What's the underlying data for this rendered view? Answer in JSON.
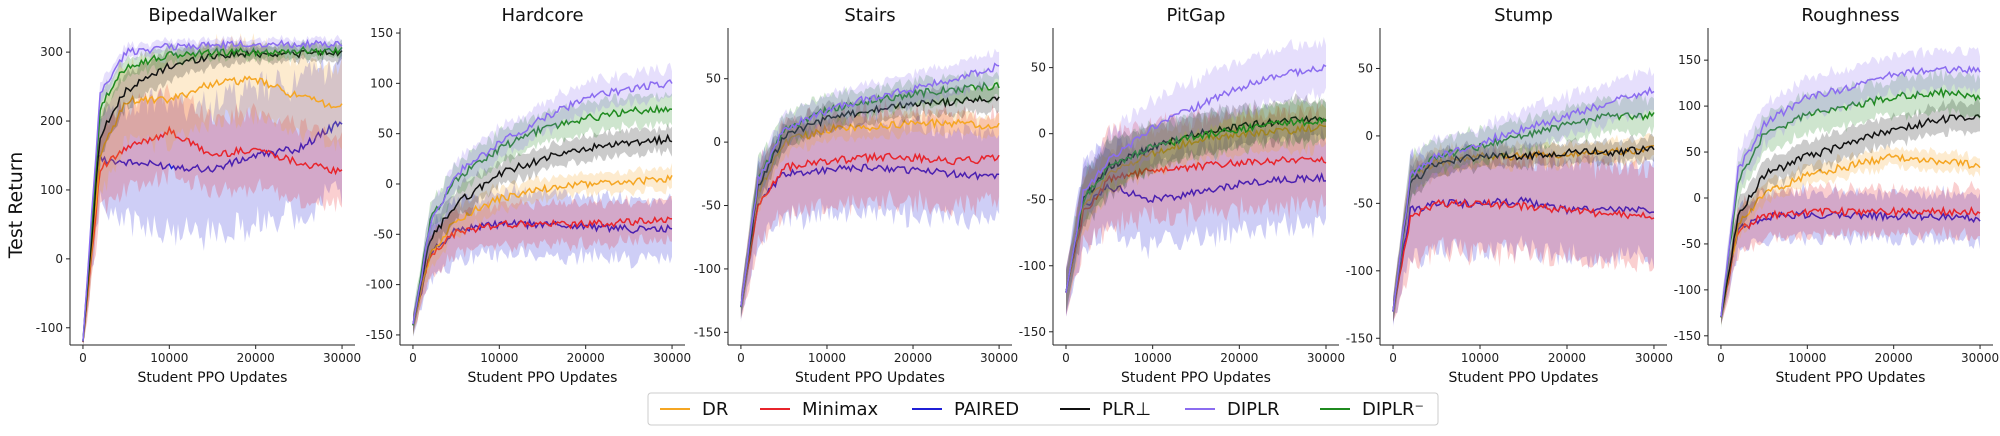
{
  "chart_data": {
    "type": "line",
    "ylabel": "Test Return",
    "xlabel": "Student PPO Updates",
    "x_ticks": [
      0,
      10000,
      20000,
      30000
    ],
    "xlim": [
      -1500,
      31500
    ],
    "legend": {
      "placement": "bottom-center",
      "entries": [
        {
          "name": "DR",
          "color": "#f5a623"
        },
        {
          "name": "Minimax",
          "color": "#e8242b"
        },
        {
          "name": "PAIRED",
          "color": "#1f1fd6"
        },
        {
          "name": "PLR⊥",
          "color": "#111111"
        },
        {
          "name": "DIPLR",
          "color": "#8b6cf0"
        },
        {
          "name": "DIPLR⁻",
          "color": "#1f8a1f"
        }
      ]
    },
    "panels": [
      {
        "title": "BipedalWalker",
        "ylim": [
          -125,
          335
        ],
        "y_ticks": [
          -100,
          0,
          100,
          200,
          300
        ],
        "x": [
          0,
          2000,
          5000,
          10000,
          15000,
          20000,
          25000,
          30000
        ],
        "series": [
          {
            "name": "DR",
            "values": [
              -120,
              150,
              230,
              230,
              255,
              260,
              235,
              220
            ],
            "spread": [
              15,
              60,
              60,
              60,
              55,
              55,
              55,
              55
            ]
          },
          {
            "name": "Minimax",
            "values": [
              -120,
              130,
              160,
              185,
              150,
              160,
              140,
              125
            ],
            "spread": [
              15,
              60,
              60,
              60,
              55,
              55,
              55,
              50
            ]
          },
          {
            "name": "PAIRED",
            "values": [
              -120,
              145,
              140,
              135,
              130,
              150,
              160,
              200
            ],
            "spread": [
              15,
              60,
              85,
              90,
              95,
              95,
              95,
              95
            ]
          },
          {
            "name": "PLR⊥",
            "values": [
              -120,
              180,
              245,
              280,
              295,
              298,
              298,
              300
            ],
            "spread": [
              15,
              30,
              25,
              20,
              15,
              12,
              12,
              12
            ]
          },
          {
            "name": "DIPLR",
            "values": [
              -120,
              240,
              300,
              308,
              310,
              312,
              312,
              310
            ],
            "spread": [
              15,
              15,
              10,
              8,
              8,
              8,
              8,
              8
            ]
          },
          {
            "name": "DIPLR⁻",
            "values": [
              -120,
              220,
              280,
              295,
              300,
              300,
              302,
              302
            ],
            "spread": [
              15,
              20,
              15,
              12,
              10,
              10,
              10,
              10
            ]
          }
        ]
      },
      {
        "title": "Hardcore",
        "ylim": [
          -160,
          155
        ],
        "y_ticks": [
          -150,
          -100,
          -50,
          0,
          50,
          100,
          150
        ],
        "x": [
          0,
          2000,
          5000,
          10000,
          15000,
          20000,
          25000,
          30000
        ],
        "series": [
          {
            "name": "DR",
            "values": [
              -140,
              -70,
              -35,
              -15,
              -5,
              0,
              2,
              5
            ],
            "spread": [
              10,
              15,
              15,
              12,
              10,
              10,
              10,
              10
            ]
          },
          {
            "name": "Minimax",
            "values": [
              -140,
              -70,
              -48,
              -40,
              -40,
              -40,
              -38,
              -35
            ],
            "spread": [
              10,
              20,
              20,
              20,
              20,
              20,
              20,
              20
            ]
          },
          {
            "name": "PAIRED",
            "values": [
              -140,
              -70,
              -45,
              -40,
              -40,
              -42,
              -45,
              -45
            ],
            "spread": [
              10,
              25,
              30,
              30,
              30,
              30,
              30,
              30
            ]
          },
          {
            "name": "PLR⊥",
            "values": [
              -140,
              -55,
              -20,
              10,
              25,
              35,
              40,
              45
            ],
            "spread": [
              10,
              15,
              15,
              12,
              12,
              12,
              12,
              12
            ]
          },
          {
            "name": "DIPLR",
            "values": [
              -140,
              -40,
              10,
              40,
              65,
              85,
              95,
              100
            ],
            "spread": [
              10,
              15,
              15,
              15,
              15,
              15,
              15,
              15
            ]
          },
          {
            "name": "DIPLR⁻",
            "values": [
              -140,
              -35,
              5,
              35,
              55,
              65,
              72,
              75
            ],
            "spread": [
              10,
              15,
              15,
              15,
              15,
              15,
              15,
              15
            ]
          }
        ]
      },
      {
        "title": "Stairs",
        "ylim": [
          -160,
          90
        ],
        "y_ticks": [
          -150,
          -100,
          -50,
          0,
          50
        ],
        "x": [
          0,
          2000,
          5000,
          10000,
          15000,
          20000,
          25000,
          30000
        ],
        "series": [
          {
            "name": "DR",
            "values": [
              -130,
              -40,
              0,
              10,
              12,
              15,
              15,
              12
            ],
            "spread": [
              10,
              15,
              10,
              8,
              8,
              8,
              8,
              8
            ]
          },
          {
            "name": "Minimax",
            "values": [
              -130,
              -50,
              -20,
              -15,
              -12,
              -12,
              -15,
              -13
            ],
            "spread": [
              10,
              30,
              35,
              35,
              35,
              35,
              35,
              35
            ]
          },
          {
            "name": "PAIRED",
            "values": [
              -130,
              -50,
              -25,
              -22,
              -20,
              -22,
              -25,
              -27
            ],
            "spread": [
              10,
              30,
              35,
              35,
              35,
              35,
              35,
              35
            ]
          },
          {
            "name": "PLR⊥",
            "values": [
              -130,
              -35,
              5,
              18,
              25,
              30,
              32,
              35
            ],
            "spread": [
              10,
              15,
              10,
              10,
              10,
              10,
              10,
              10
            ]
          },
          {
            "name": "DIPLR",
            "values": [
              -130,
              -30,
              10,
              25,
              35,
              42,
              50,
              60
            ],
            "spread": [
              10,
              15,
              12,
              12,
              12,
              12,
              12,
              12
            ]
          },
          {
            "name": "DIPLR⁻",
            "values": [
              -130,
              -30,
              10,
              25,
              32,
              38,
              42,
              45
            ],
            "spread": [
              10,
              15,
              12,
              12,
              10,
              10,
              10,
              10
            ]
          }
        ]
      },
      {
        "title": "PitGap",
        "ylim": [
          -160,
          80
        ],
        "y_ticks": [
          -150,
          -100,
          -50,
          0,
          50
        ],
        "x": [
          0,
          2000,
          5000,
          10000,
          15000,
          20000,
          25000,
          30000
        ],
        "series": [
          {
            "name": "DR",
            "values": [
              -120,
              -55,
              -30,
              -15,
              -5,
              0,
              2,
              5
            ],
            "spread": [
              15,
              20,
              15,
              15,
              15,
              15,
              15,
              15
            ]
          },
          {
            "name": "Minimax",
            "values": [
              -120,
              -60,
              -35,
              -28,
              -25,
              -22,
              -20,
              -20
            ],
            "spread": [
              15,
              25,
              35,
              35,
              35,
              35,
              35,
              35
            ]
          },
          {
            "name": "PAIRED",
            "values": [
              -120,
              -55,
              -40,
              -50,
              -45,
              -38,
              -35,
              -33
            ],
            "spread": [
              15,
              30,
              35,
              35,
              35,
              35,
              35,
              35
            ]
          },
          {
            "name": "PLR⊥",
            "values": [
              -120,
              -50,
              -25,
              -10,
              0,
              5,
              10,
              12
            ],
            "spread": [
              15,
              20,
              20,
              15,
              15,
              15,
              15,
              15
            ]
          },
          {
            "name": "DIPLR",
            "values": [
              -120,
              -45,
              -20,
              5,
              20,
              35,
              45,
              50
            ],
            "spread": [
              15,
              20,
              20,
              20,
              20,
              20,
              20,
              20
            ]
          },
          {
            "name": "DIPLR⁻",
            "values": [
              -120,
              -50,
              -25,
              -10,
              -2,
              3,
              8,
              10
            ],
            "spread": [
              15,
              20,
              20,
              15,
              15,
              15,
              15,
              15
            ]
          }
        ]
      },
      {
        "title": "Stump",
        "ylim": [
          -155,
          80
        ],
        "y_ticks": [
          -150,
          -100,
          -50,
          0,
          50
        ],
        "x": [
          0,
          2000,
          5000,
          10000,
          15000,
          20000,
          25000,
          30000
        ],
        "series": [
          {
            "name": "DR",
            "values": [
              -130,
              -30,
              -20,
              -15,
              -15,
              -13,
              -12,
              -10
            ],
            "spread": [
              10,
              12,
              10,
              8,
              8,
              8,
              8,
              8
            ]
          },
          {
            "name": "Minimax",
            "values": [
              -130,
              -60,
              -50,
              -50,
              -52,
              -55,
              -58,
              -60
            ],
            "spread": [
              10,
              35,
              35,
              35,
              35,
              35,
              35,
              35
            ]
          },
          {
            "name": "PAIRED",
            "values": [
              -130,
              -55,
              -50,
              -50,
              -48,
              -55,
              -55,
              -55
            ],
            "spread": [
              10,
              35,
              35,
              35,
              35,
              35,
              35,
              35
            ]
          },
          {
            "name": "PLR⊥",
            "values": [
              -130,
              -35,
              -20,
              -15,
              -15,
              -12,
              -12,
              -10
            ],
            "spread": [
              10,
              12,
              10,
              8,
              8,
              8,
              8,
              8
            ]
          },
          {
            "name": "DIPLR",
            "values": [
              -130,
              -30,
              -15,
              -5,
              5,
              15,
              25,
              35
            ],
            "spread": [
              10,
              15,
              12,
              12,
              15,
              15,
              15,
              15
            ]
          },
          {
            "name": "DIPLR⁻",
            "values": [
              -130,
              -30,
              -15,
              -8,
              0,
              8,
              15,
              15
            ],
            "spread": [
              10,
              15,
              12,
              12,
              12,
              12,
              12,
              12
            ]
          }
        ]
      },
      {
        "title": "Roughness",
        "ylim": [
          -160,
          185
        ],
        "y_ticks": [
          -150,
          -100,
          -50,
          0,
          50,
          100,
          150
        ],
        "x": [
          0,
          2000,
          5000,
          10000,
          15000,
          20000,
          25000,
          30000
        ],
        "series": [
          {
            "name": "DR",
            "values": [
              -130,
              -30,
              5,
              25,
              35,
              45,
              40,
              35
            ],
            "spread": [
              10,
              15,
              12,
              10,
              10,
              10,
              10,
              10
            ]
          },
          {
            "name": "Minimax",
            "values": [
              -130,
              -35,
              -20,
              -15,
              -15,
              -15,
              -15,
              -15
            ],
            "spread": [
              10,
              25,
              25,
              25,
              25,
              25,
              25,
              25
            ]
          },
          {
            "name": "PAIRED",
            "values": [
              -130,
              -35,
              -20,
              -18,
              -18,
              -20,
              -20,
              -22
            ],
            "spread": [
              10,
              25,
              25,
              25,
              25,
              25,
              25,
              25
            ]
          },
          {
            "name": "PLR⊥",
            "values": [
              -130,
              -20,
              25,
              45,
              60,
              75,
              85,
              90
            ],
            "spread": [
              10,
              15,
              15,
              15,
              15,
              15,
              15,
              15
            ]
          },
          {
            "name": "DIPLR",
            "values": [
              -130,
              30,
              80,
              110,
              120,
              135,
              140,
              140
            ],
            "spread": [
              10,
              20,
              20,
              20,
              20,
              20,
              20,
              20
            ]
          },
          {
            "name": "DIPLR⁻",
            "values": [
              -130,
              20,
              70,
              90,
              100,
              110,
              115,
              110
            ],
            "spread": [
              10,
              20,
              20,
              20,
              20,
              20,
              20,
              20
            ]
          }
        ]
      }
    ]
  }
}
